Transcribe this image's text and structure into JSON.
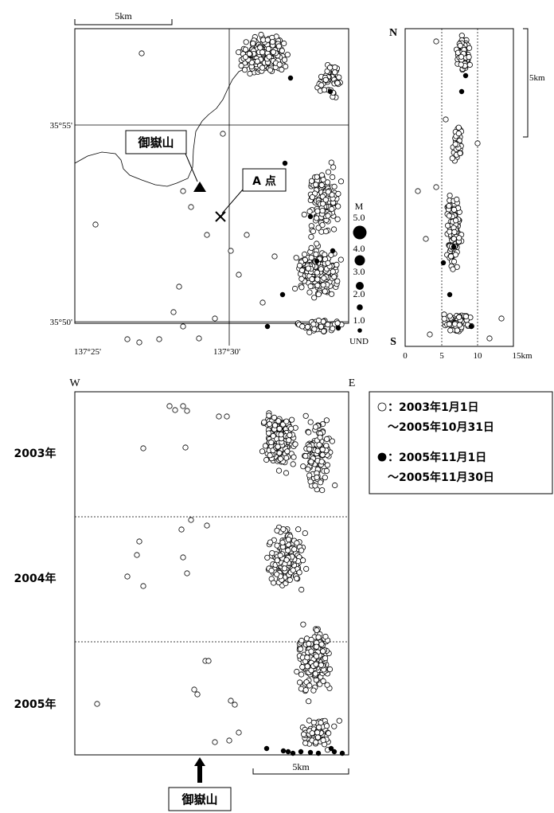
{
  "chart_data": [
    {
      "type": "scatter",
      "panel": "map",
      "lat_ticks": [
        "35°55'",
        "35°50'"
      ],
      "lon_ticks": [
        "137°25'",
        "137°30'"
      ],
      "scale_label": "5km",
      "annotations": {
        "volcano": "御嶽山",
        "point_a": "A 点"
      },
      "magnitude_legend": {
        "title": "M",
        "labels": [
          "5.0",
          "4.0",
          "3.0",
          "2.0",
          "1.0",
          "UND"
        ]
      },
      "series": [
        {
          "key": "period1",
          "style": "open"
        },
        {
          "key": "period2",
          "style": "filled"
        }
      ]
    },
    {
      "type": "scatter",
      "panel": "ns_section",
      "top_label": "N",
      "bottom_label": "S",
      "x_ticks": [
        "0",
        "5",
        "10",
        "15km"
      ],
      "scale_label": "5km"
    },
    {
      "type": "scatter",
      "panel": "ew_time",
      "left_label": "W",
      "right_label": "E",
      "y_ticks": [
        "2003年",
        "2004年",
        "2005年"
      ],
      "scale_label": "5km",
      "arrow_label": "御嶽山"
    }
  ],
  "legend": {
    "items": [
      {
        "symbol": "open",
        "line1": "：2003年1月1日",
        "line2": "～2005年10月31日"
      },
      {
        "symbol": "filled",
        "line1": "：2005年11月1日",
        "line2": "～2005年11月30日"
      }
    ]
  }
}
